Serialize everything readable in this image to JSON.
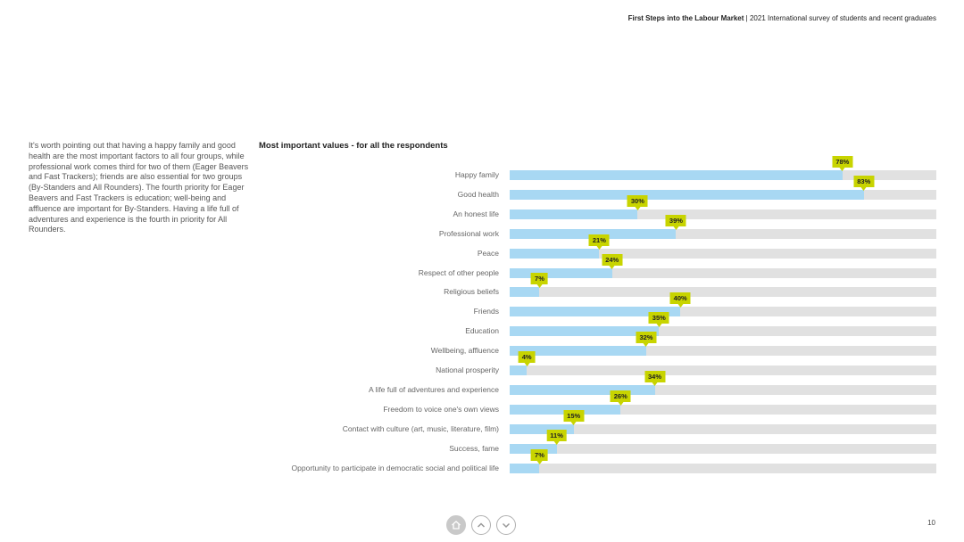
{
  "header": {
    "title": "First Steps into the Labour Market",
    "separator": "|",
    "subtitle": "2021 International survey of students and recent graduates"
  },
  "body_text": "It's worth pointing out that having a happy family and good health are the most important factors to all four groups, while professional work comes third for two of them (Eager Beavers and Fast Trackers); friends are also essential for two groups (By-Standers and All Rounders). The fourth priority for Eager Beavers and Fast Trackers is education; well-being and affluence are important for By-Standers. Having a life full of adventures and experience is the fourth in priority for All Rounders.",
  "chart_data": {
    "type": "bar",
    "orientation": "horizontal",
    "title": "Most important values - for all the respondents",
    "categories": [
      "Happy family",
      "Good health",
      "An honest life",
      "Professional work",
      "Peace",
      "Respect of other people",
      "Religious beliefs",
      "Friends",
      "Education",
      "Wellbeing, affluence",
      "National prosperity",
      "A life full of adventures and experience",
      "Freedom to voice one's own views",
      "Contact with culture (art, music, literature, film)",
      "Success, fame",
      "Opportunity to participate in democratic social and political life"
    ],
    "values": [
      78,
      83,
      30,
      39,
      21,
      24,
      7,
      40,
      35,
      32,
      4,
      34,
      26,
      15,
      11,
      7
    ],
    "value_labels": [
      "78%",
      "83%",
      "30%",
      "39%",
      "21%",
      "24%",
      "7%",
      "40%",
      "35%",
      "32%",
      "4%",
      "34%",
      "26%",
      "15%",
      "11%",
      "7%"
    ],
    "xlim": [
      0,
      100
    ],
    "unit": "%",
    "colors": {
      "fill": "#a8d8f3",
      "track": "#e1e1e1",
      "callout": "#c8d400"
    }
  },
  "nav": {
    "home_icon": "home-icon",
    "up_icon": "chevron-up-icon",
    "down_icon": "chevron-down-icon"
  },
  "page_number": "10"
}
